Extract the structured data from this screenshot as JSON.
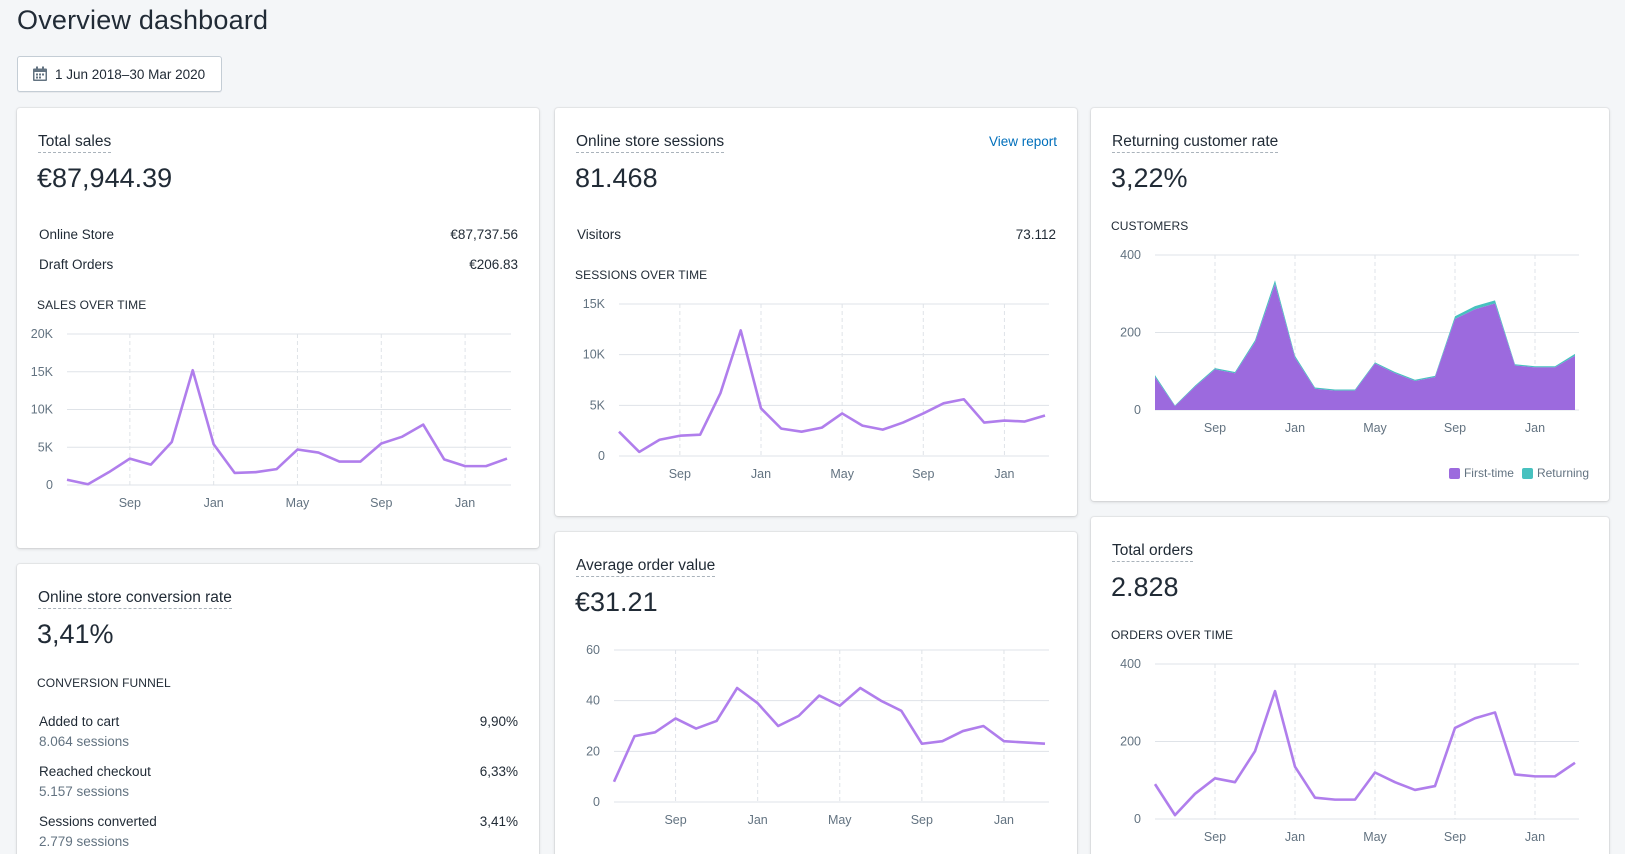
{
  "page": {
    "title": "Overview dashboard",
    "date_range": "1 Jun 2018–30 Mar 2020"
  },
  "colors": {
    "line": "#b07eec",
    "area_first": "#9c6ade",
    "area_returning": "#47c1bf",
    "grid": "#dfe3e8",
    "link": "#006fbb"
  },
  "total_sales": {
    "title": "Total sales",
    "value": "€87,944.39",
    "rows": [
      {
        "label": "Online Store",
        "value": "€87,737.56"
      },
      {
        "label": "Draft Orders",
        "value": "€206.83"
      }
    ],
    "section": "SALES OVER TIME"
  },
  "sessions": {
    "title": "Online store sessions",
    "link": "View report",
    "value": "81.468",
    "rows": [
      {
        "label": "Visitors",
        "value": "73.112"
      }
    ],
    "section": "SESSIONS OVER TIME"
  },
  "returning": {
    "title": "Returning customer rate",
    "value": "3,22%",
    "section": "CUSTOMERS",
    "legend": [
      {
        "label": "First-time",
        "color": "#9c6ade"
      },
      {
        "label": "Returning",
        "color": "#47c1bf"
      }
    ]
  },
  "conversion": {
    "title": "Online store conversion rate",
    "value": "3,41%",
    "section": "CONVERSION FUNNEL",
    "funnel": [
      {
        "label": "Added to cart",
        "sub": "8.064 sessions",
        "value": "9,90%"
      },
      {
        "label": "Reached checkout",
        "sub": "5.157 sessions",
        "value": "6,33%"
      },
      {
        "label": "Sessions converted",
        "sub": "2.779 sessions",
        "value": "3,41%"
      }
    ]
  },
  "aov": {
    "title": "Average order value",
    "value": "€31.21"
  },
  "orders": {
    "title": "Total orders",
    "value": "2.828",
    "section": "ORDERS OVER TIME"
  },
  "chart_data": [
    {
      "id": "sales",
      "type": "line",
      "x_labels": [
        "Sep",
        "Jan",
        "May",
        "Sep",
        "Jan"
      ],
      "y_ticks": [
        "0",
        "5K",
        "10K",
        "15K",
        "20K"
      ],
      "ylim": [
        0,
        20000
      ],
      "series": [
        {
          "values": [
            700,
            100,
            1700,
            3500,
            2700,
            5700,
            15200,
            5400,
            1600,
            1700,
            2100,
            4700,
            4300,
            3100,
            3100,
            5500,
            6400,
            8000,
            3400,
            2500,
            2500,
            3500
          ]
        }
      ]
    },
    {
      "id": "sessions",
      "type": "line",
      "x_labels": [
        "Sep",
        "Jan",
        "May",
        "Sep",
        "Jan"
      ],
      "y_ticks": [
        "0",
        "5K",
        "10K",
        "15K"
      ],
      "ylim": [
        0,
        15000
      ],
      "series": [
        {
          "values": [
            2400,
            400,
            1600,
            2000,
            2100,
            6200,
            12400,
            4700,
            2700,
            2400,
            2800,
            4200,
            3000,
            2600,
            3300,
            4200,
            5200,
            5600,
            3300,
            3500,
            3400,
            4000
          ]
        }
      ]
    },
    {
      "id": "customers",
      "type": "area",
      "x_labels": [
        "Sep",
        "Jan",
        "May",
        "Sep",
        "Jan"
      ],
      "y_ticks": [
        "0",
        "200",
        "400"
      ],
      "ylim": [
        0,
        400
      ],
      "series": [
        {
          "name": "First-time",
          "values": [
            85,
            10,
            60,
            105,
            95,
            175,
            325,
            135,
            55,
            50,
            50,
            120,
            95,
            75,
            85,
            235,
            260,
            275,
            115,
            110,
            110,
            140
          ]
        },
        {
          "name": "Returning",
          "values": [
            5,
            2,
            3,
            3,
            3,
            5,
            10,
            5,
            3,
            3,
            3,
            3,
            3,
            3,
            3,
            7,
            8,
            8,
            3,
            3,
            3,
            5
          ]
        }
      ]
    },
    {
      "id": "aov",
      "type": "line",
      "x_labels": [
        "Sep",
        "Jan",
        "May",
        "Sep",
        "Jan"
      ],
      "y_ticks": [
        "0",
        "20",
        "40",
        "60"
      ],
      "ylim": [
        0,
        60
      ],
      "series": [
        {
          "values": [
            8,
            26,
            27.5,
            33,
            29,
            32,
            45,
            39,
            30,
            34,
            42,
            38,
            45,
            40,
            36,
            23,
            24,
            28,
            30,
            24,
            23.5,
            23
          ]
        }
      ]
    },
    {
      "id": "orders",
      "type": "line",
      "x_labels": [
        "Sep",
        "Jan",
        "May",
        "Sep",
        "Jan"
      ],
      "y_ticks": [
        "0",
        "200",
        "400"
      ],
      "ylim": [
        0,
        400
      ],
      "series": [
        {
          "values": [
            90,
            10,
            65,
            105,
            95,
            175,
            330,
            135,
            55,
            50,
            50,
            120,
            95,
            75,
            85,
            235,
            260,
            275,
            115,
            110,
            110,
            145
          ]
        }
      ]
    }
  ]
}
